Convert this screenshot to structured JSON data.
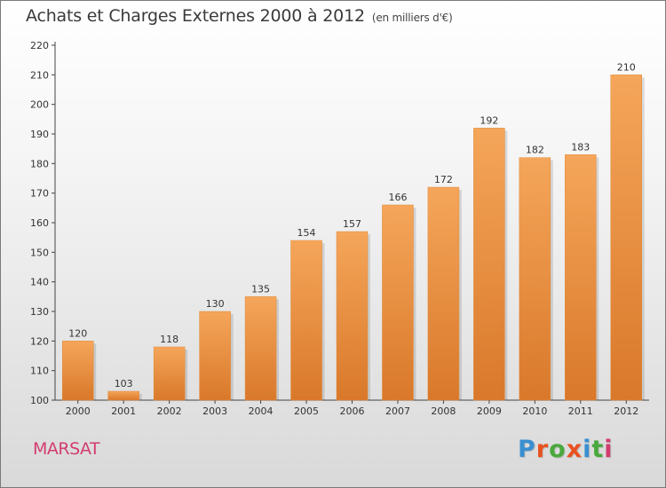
{
  "title": "Achats et Charges Externes 2000 à 2012",
  "subtitle": "(en milliers d'€)",
  "location": "MARSAT",
  "logo": {
    "text": "Proxiti",
    "letter_colors": [
      "#3a8fd1",
      "#e8521f",
      "#4aa83d",
      "#e8521f",
      "#3a8fd1",
      "#4aa83d",
      "#d23d6e"
    ]
  },
  "colors": {
    "bar_light": "#f5a65a",
    "bar_dark": "#d9782a",
    "location": "#d23d6e"
  },
  "chart_data": {
    "type": "bar",
    "title": "Achats et Charges Externes 2000 à 2012",
    "subtitle": "(en milliers d'€)",
    "categories": [
      "2000",
      "2001",
      "2002",
      "2003",
      "2004",
      "2005",
      "2006",
      "2007",
      "2008",
      "2009",
      "2010",
      "2011",
      "2012"
    ],
    "values": [
      120,
      103,
      118,
      130,
      135,
      154,
      157,
      166,
      172,
      192,
      182,
      183,
      210
    ],
    "ylim": [
      100,
      220
    ],
    "yticks": [
      100,
      110,
      120,
      130,
      140,
      150,
      160,
      170,
      180,
      190,
      200,
      210,
      220
    ],
    "grid": false,
    "data_labels": true
  }
}
